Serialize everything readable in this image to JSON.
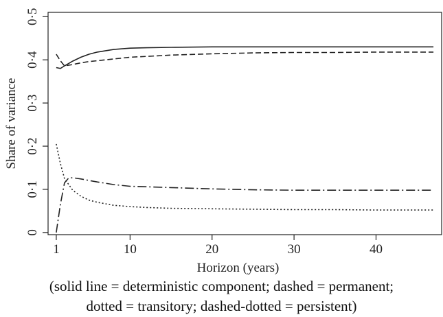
{
  "chart_data": {
    "type": "line",
    "xlabel": "Horizon (years)",
    "ylabel": "Share of variance",
    "xlim": [
      0,
      48
    ],
    "ylim": [
      -0.005,
      0.51
    ],
    "xticks": [
      1,
      10,
      20,
      30,
      40
    ],
    "xtick_labels": [
      "1",
      "10",
      "20",
      "30",
      "40"
    ],
    "yticks": [
      0,
      0.1,
      0.2,
      0.3,
      0.4,
      0.5
    ],
    "ytick_labels": [
      "0",
      "0·1",
      "0·2",
      "0·3",
      "0·4",
      "0·5"
    ],
    "series": [
      {
        "style": "solid",
        "x": [
          1,
          1.5,
          2,
          3,
          4,
          5,
          6,
          8,
          10,
          12,
          15,
          20,
          25,
          30,
          35,
          40,
          47
        ],
        "y": [
          0.382,
          0.38,
          0.386,
          0.397,
          0.406,
          0.413,
          0.418,
          0.424,
          0.427,
          0.428,
          0.429,
          0.43,
          0.43,
          0.43,
          0.43,
          0.43,
          0.43
        ]
      },
      {
        "style": "dashed",
        "x": [
          1,
          1.5,
          2,
          3,
          4,
          5,
          6,
          8,
          10,
          12,
          15,
          20,
          25,
          30,
          35,
          40,
          47
        ],
        "y": [
          0.413,
          0.398,
          0.386,
          0.389,
          0.393,
          0.396,
          0.398,
          0.402,
          0.406,
          0.408,
          0.411,
          0.414,
          0.416,
          0.417,
          0.417,
          0.418,
          0.418
        ]
      },
      {
        "style": "dotted",
        "x": [
          1,
          1.5,
          2,
          3,
          4,
          5,
          6,
          8,
          10,
          12,
          15,
          20,
          25,
          30,
          35,
          40,
          47
        ],
        "y": [
          0.205,
          0.16,
          0.125,
          0.098,
          0.084,
          0.075,
          0.07,
          0.063,
          0.06,
          0.058,
          0.056,
          0.055,
          0.054,
          0.053,
          0.053,
          0.052,
          0.052
        ]
      },
      {
        "style": "dashdot",
        "x": [
          1,
          1.5,
          2,
          2.5,
          3,
          4,
          6,
          8,
          10,
          12,
          15,
          20,
          25,
          30,
          35,
          40,
          47
        ],
        "y": [
          0.0,
          0.065,
          0.115,
          0.126,
          0.127,
          0.124,
          0.117,
          0.111,
          0.107,
          0.106,
          0.104,
          0.101,
          0.099,
          0.098,
          0.098,
          0.098,
          0.098
        ]
      }
    ]
  },
  "caption": {
    "line1": "(solid line = deterministic component; dashed = permanent;",
    "line2": "dotted = transitory; dashed-dotted = persistent)"
  }
}
